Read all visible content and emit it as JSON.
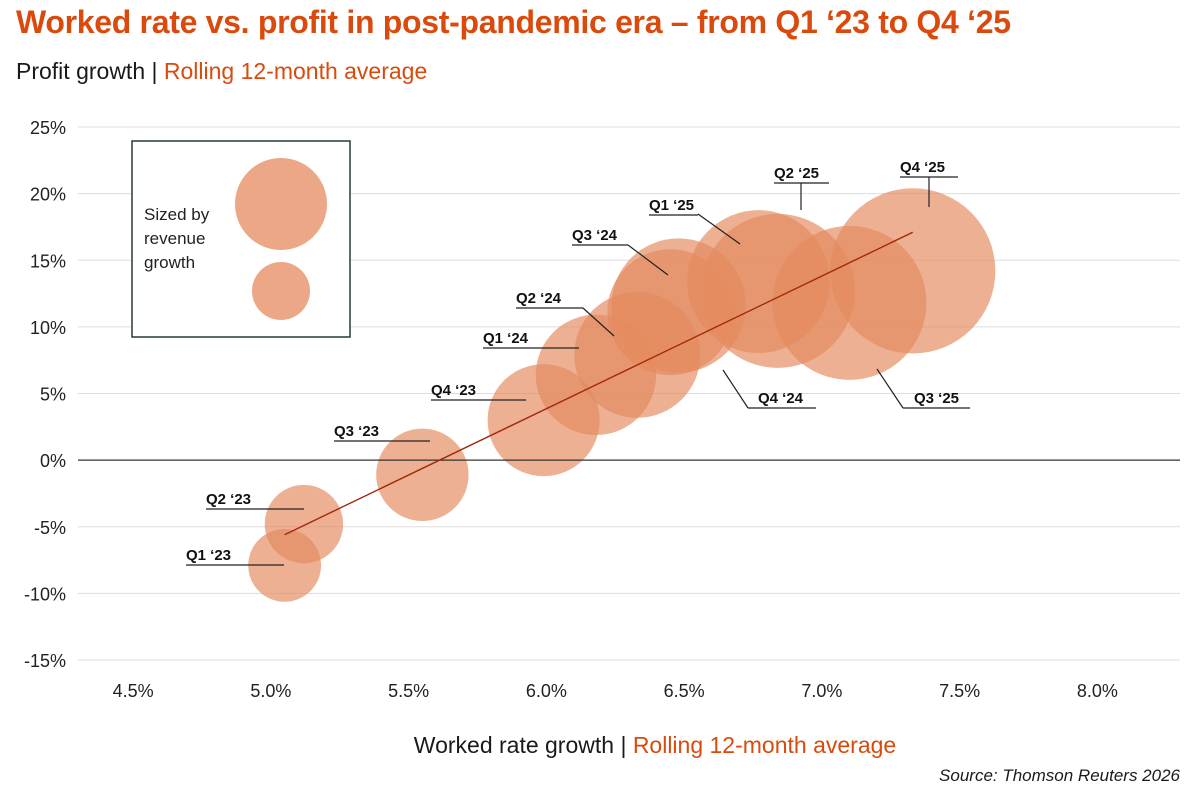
{
  "header": {
    "title": "Worked rate vs. profit in post-pandemic era – from Q1 ‘23 to Q4 ‘25",
    "subtitle_main": "Profit growth | ",
    "subtitle_accent": "Rolling 12-month average"
  },
  "footer": {
    "xlabel_main": "Worked rate growth | ",
    "xlabel_accent": "Rolling 12-month average",
    "source": "Source: Thomson Reuters 2026"
  },
  "legend": {
    "lines": [
      "Sized by",
      "revenue",
      "growth"
    ]
  },
  "colors": {
    "accent": "#d94a0c",
    "bubble": "#e58a5e",
    "trend": "#a3290a",
    "grid": "#dddddd",
    "zero_line": "#333333"
  },
  "chart_data": {
    "type": "scatter",
    "title": "Worked rate vs. profit in post-pandemic era – from Q1 ‘23 to Q4 ‘25",
    "xlabel": "Worked rate growth | Rolling 12-month average",
    "ylabel": "Profit growth | Rolling 12-month average",
    "xlim": [
      4.3,
      8.3
    ],
    "ylim": [
      -15,
      25
    ],
    "x_ticks": [
      4.5,
      5.0,
      5.5,
      6.0,
      6.5,
      7.0,
      7.5,
      8.0
    ],
    "x_tick_labels": [
      "4.5%",
      "5.0%",
      "5.5%",
      "6.0%",
      "6.5%",
      "7.0%",
      "7.5%",
      "8.0%"
    ],
    "y_ticks": [
      25,
      20,
      15,
      10,
      5,
      0,
      -5,
      -10,
      -15
    ],
    "y_tick_labels": [
      "25%",
      "20%",
      "15%",
      "10%",
      "5%",
      "0%",
      "-5%",
      "-10%",
      "-15%"
    ],
    "size_encoding": "Sized by revenue growth (relative)",
    "points": [
      {
        "label": "Q1 ‘23",
        "x": 5.05,
        "y": -7.9,
        "size": 1.3
      },
      {
        "label": "Q2 ‘23",
        "x": 5.12,
        "y": -4.8,
        "size": 1.4
      },
      {
        "label": "Q3 ‘23",
        "x": 5.55,
        "y": -1.1,
        "size": 1.65
      },
      {
        "label": "Q4 ‘23",
        "x": 5.99,
        "y": 3.0,
        "size": 2.0
      },
      {
        "label": "Q1 ‘24",
        "x": 6.18,
        "y": 6.4,
        "size": 2.15
      },
      {
        "label": "Q2 ‘24",
        "x": 6.33,
        "y": 7.9,
        "size": 2.25
      },
      {
        "label": "Q3 ‘24",
        "x": 6.45,
        "y": 11.1,
        "size": 2.25
      },
      {
        "label": "Q4 ‘24",
        "x": 6.48,
        "y": 11.6,
        "size": 2.4
      },
      {
        "label": "Q1 ‘25",
        "x": 6.77,
        "y": 13.4,
        "size": 2.55
      },
      {
        "label": "Q2 ‘25",
        "x": 6.84,
        "y": 12.7,
        "size": 2.75
      },
      {
        "label": "Q3 ‘25",
        "x": 7.1,
        "y": 11.8,
        "size": 2.75
      },
      {
        "label": "Q4 ‘25",
        "x": 7.33,
        "y": 14.2,
        "size": 2.95
      }
    ],
    "trendline": {
      "x": [
        5.05,
        7.33
      ],
      "y": [
        -5.6,
        17.1
      ]
    }
  }
}
